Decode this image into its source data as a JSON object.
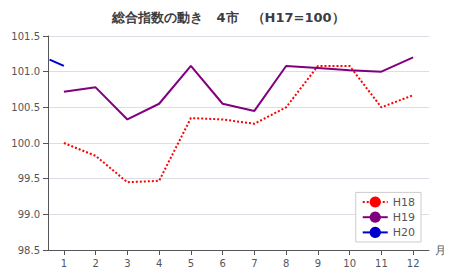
{
  "chart_data": {
    "type": "line",
    "title": "総合指数の動き　4市　（H17=100）",
    "xlabel": "月",
    "series": [
      {
        "name": "H18",
        "color": "#ff0000",
        "line_style": "dotted",
        "x": [
          1,
          2,
          3,
          4,
          5,
          6,
          7,
          8,
          9,
          10,
          11,
          12
        ],
        "values": [
          100.0,
          99.82,
          99.45,
          99.47,
          100.35,
          100.33,
          100.27,
          100.5,
          101.08,
          101.08,
          100.5,
          100.67
        ]
      },
      {
        "name": "H19",
        "color": "#800080",
        "line_style": "solid",
        "x": [
          1,
          2,
          3,
          4,
          5,
          6,
          7,
          8,
          9,
          10,
          11,
          12
        ],
        "values": [
          100.72,
          100.78,
          100.33,
          100.55,
          101.08,
          100.55,
          100.45,
          101.08,
          101.05,
          101.02,
          101.0,
          101.2
        ]
      },
      {
        "name": "H20",
        "color": "#0000cd",
        "line_style": "solid",
        "x": [
          0.55,
          1.0
        ],
        "values": [
          101.17,
          101.08
        ]
      }
    ],
    "xlim": [
      0.5,
      12.5
    ],
    "xticks": [
      1,
      2,
      3,
      4,
      5,
      6,
      7,
      8,
      9,
      10,
      11,
      12
    ],
    "ylim": [
      98.5,
      101.5
    ],
    "yticks": [
      98.5,
      {
        "value": 99.0,
        "label": "99.0"
      },
      99.5,
      {
        "value": 100.0,
        "label": "100.0"
      },
      100.5,
      {
        "value": 101.0,
        "label": "101.0"
      },
      101.5
    ],
    "grid": true,
    "legend": "lower right"
  }
}
